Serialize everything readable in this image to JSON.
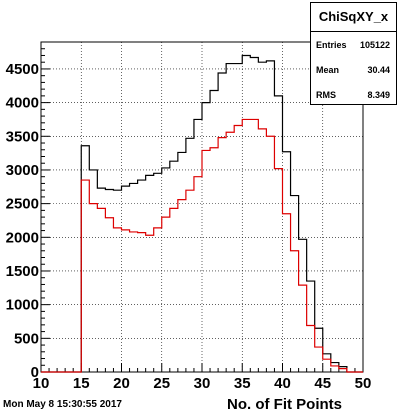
{
  "chart_data": {
    "type": "line",
    "title": "",
    "xlabel": "No. of Fit Points",
    "ylabel": "",
    "xlim": [
      10,
      50
    ],
    "ylim": [
      0,
      4900
    ],
    "x_ticks": [
      10,
      15,
      20,
      25,
      30,
      35,
      40,
      45,
      50
    ],
    "y_ticks": [
      0,
      500,
      1000,
      1500,
      2000,
      2500,
      3000,
      3500,
      4000,
      4500
    ],
    "bin_edges": [
      10,
      11,
      12,
      13,
      14,
      15,
      16,
      17,
      18,
      19,
      20,
      21,
      22,
      23,
      24,
      25,
      26,
      27,
      28,
      29,
      30,
      31,
      32,
      33,
      34,
      35,
      36,
      37,
      38,
      39,
      40,
      41,
      42,
      43,
      44,
      45,
      46,
      47,
      48,
      49,
      50
    ],
    "series": [
      {
        "color": "#000000",
        "values": [
          0,
          0,
          0,
          0,
          0,
          3360,
          3000,
          2730,
          2710,
          2700,
          2760,
          2800,
          2850,
          2920,
          2950,
          3030,
          3130,
          3260,
          3470,
          3750,
          4000,
          4180,
          4440,
          4580,
          4580,
          4700,
          4670,
          4600,
          4620,
          4100,
          3270,
          2620,
          1970,
          1350,
          650,
          270,
          140,
          80,
          0,
          0
        ]
      },
      {
        "color": "#dd0000",
        "values": [
          0,
          0,
          0,
          0,
          0,
          2850,
          2500,
          2430,
          2290,
          2140,
          2110,
          2080,
          2070,
          2030,
          2140,
          2300,
          2430,
          2560,
          2700,
          2900,
          3290,
          3330,
          3480,
          3560,
          3660,
          3750,
          3750,
          3610,
          3500,
          3020,
          2350,
          1800,
          1290,
          690,
          370,
          190,
          90,
          50,
          0,
          0
        ]
      }
    ]
  },
  "stats": {
    "title": "ChiSqXY_x",
    "rows": [
      {
        "key": "Entries",
        "value": "105122"
      },
      {
        "key": "Mean",
        "value": "30.44"
      },
      {
        "key": "RMS",
        "value": "8.349"
      }
    ]
  },
  "footer": {
    "timestamp": "Mon May  8 15:30:55 2017"
  }
}
